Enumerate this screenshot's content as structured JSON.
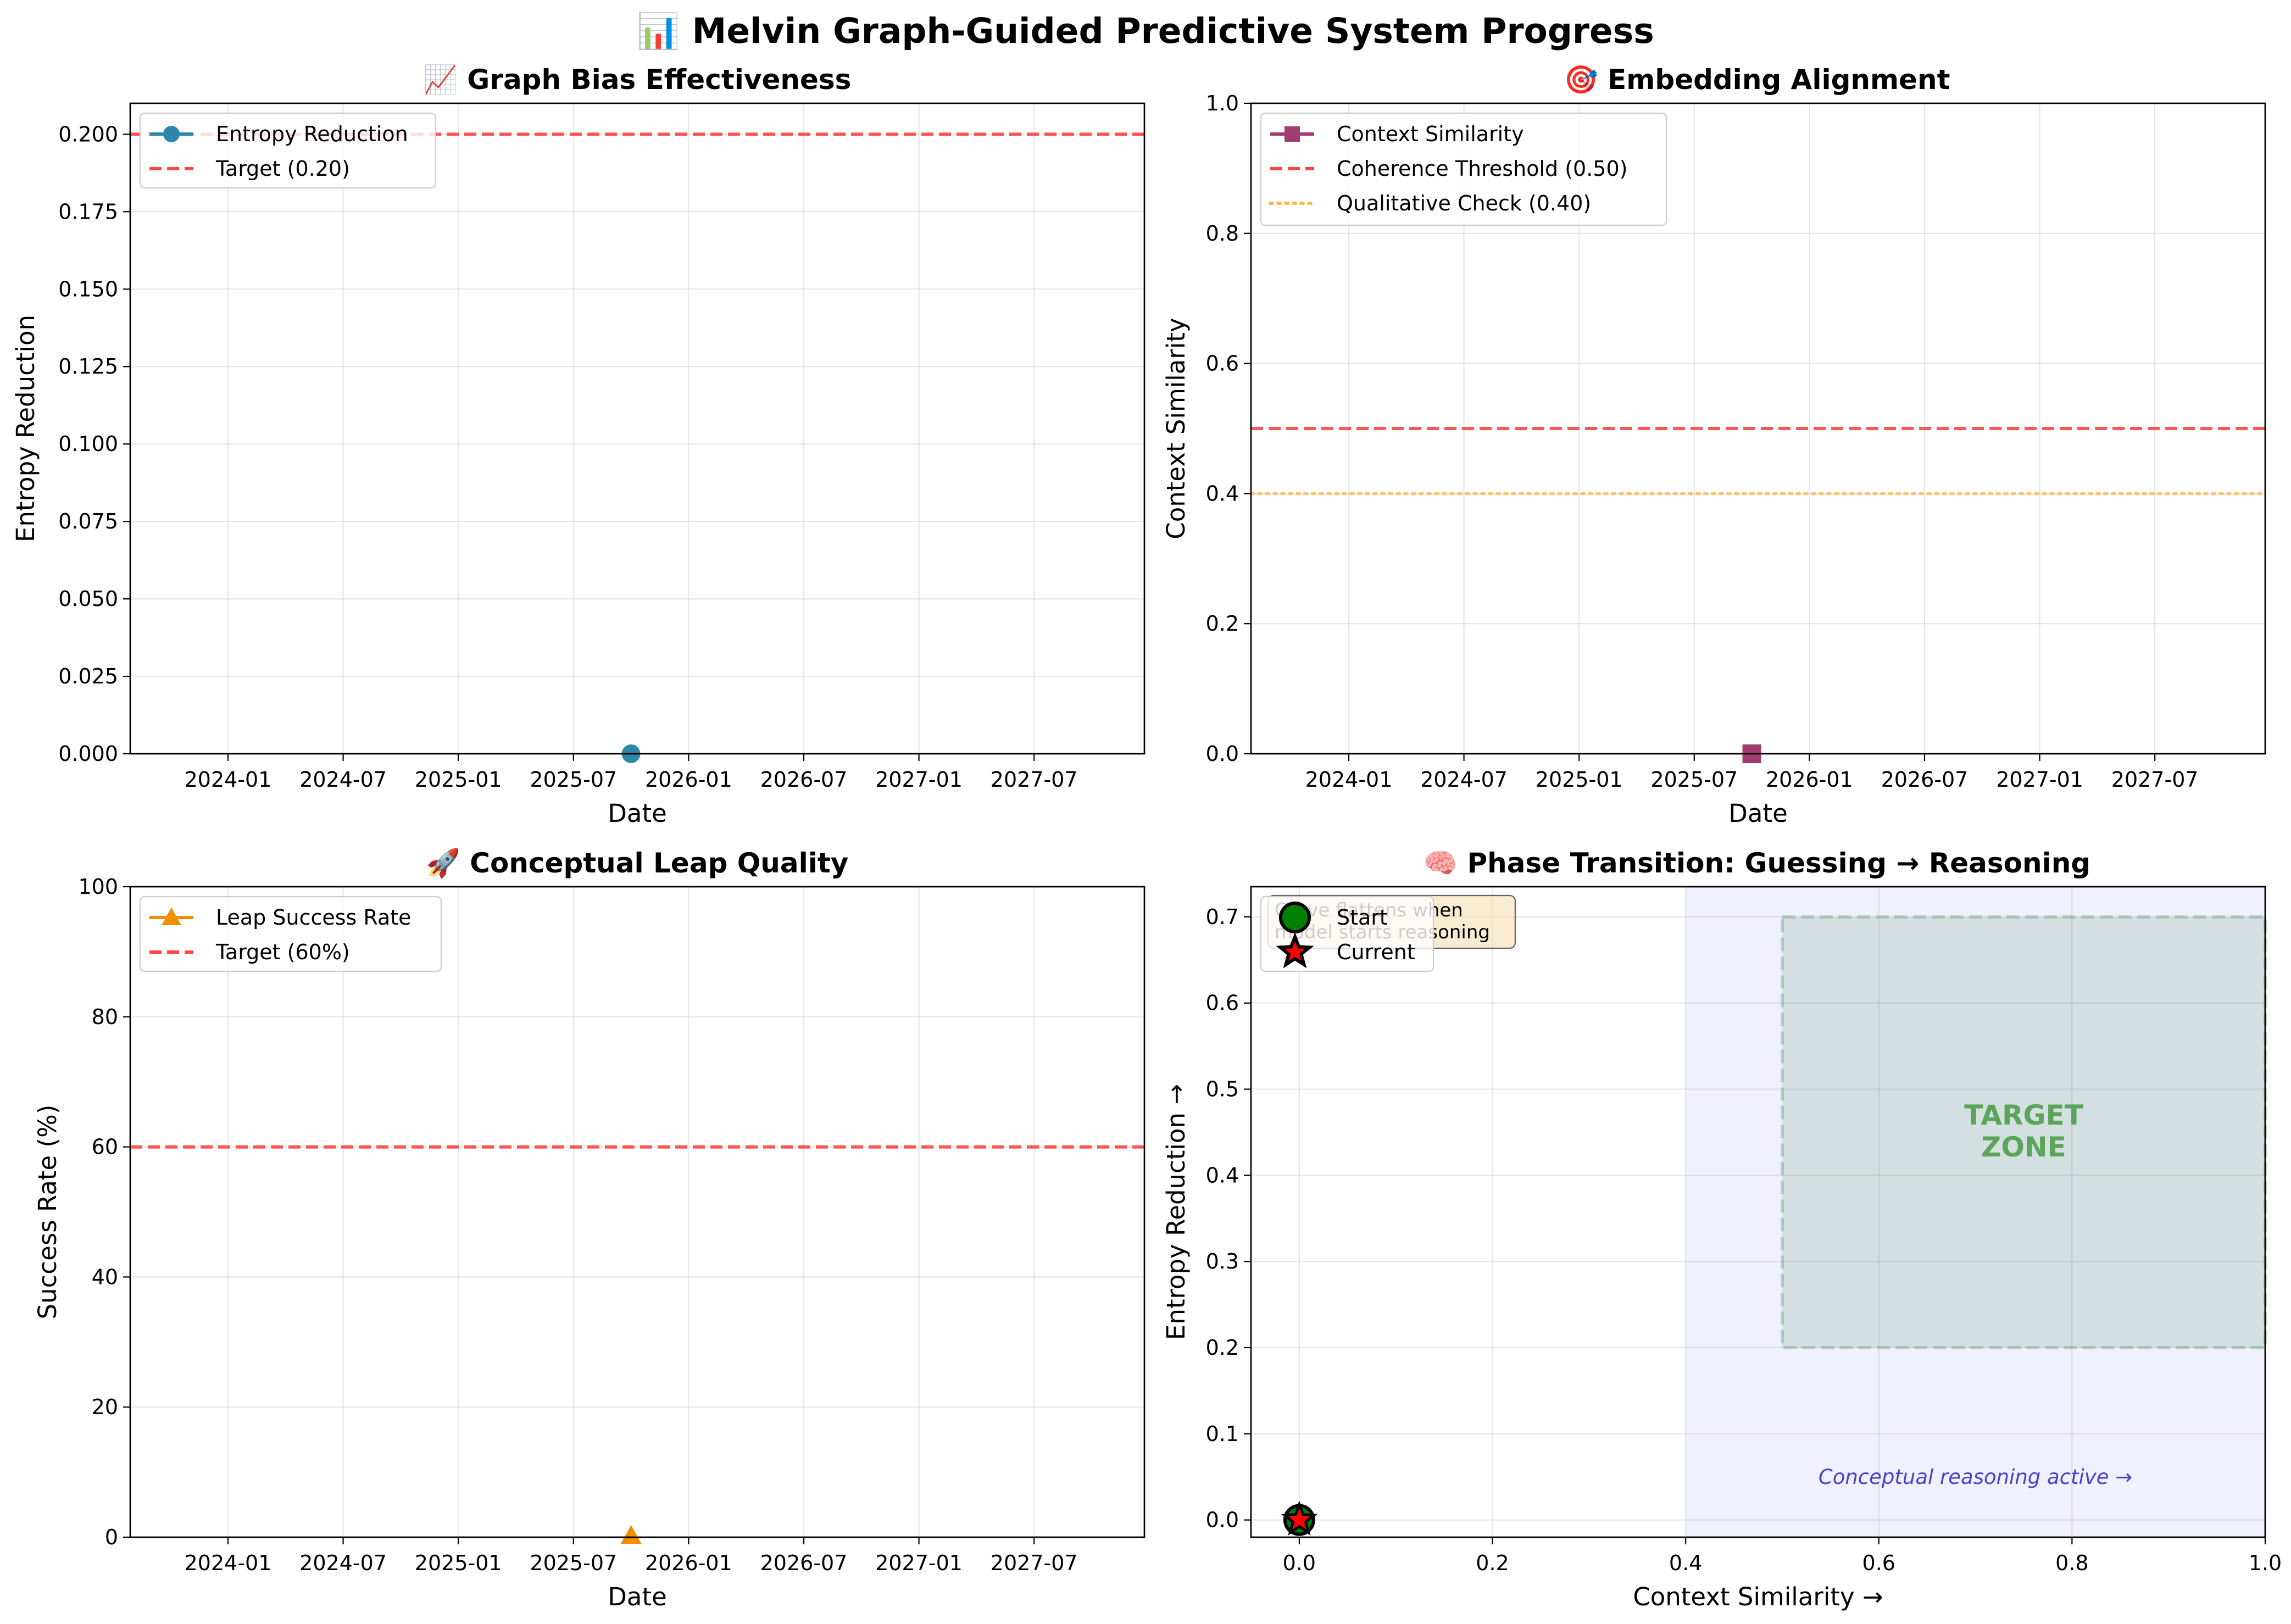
{
  "title": "📊 Melvin Graph-Guided Predictive System Progress",
  "colors": {
    "entropy": "#2e86ab",
    "similarity": "#a23b72",
    "leap": "#f18f01",
    "target": "#ff4444",
    "qualitative": "#ffb84d",
    "zone": "#2e7d32",
    "region": "#7070ff",
    "start": "#008000",
    "current": "#ff0000"
  },
  "chart_data": [
    {
      "type": "line",
      "title": "📈 Graph Bias Effectiveness",
      "xlabel": "Date",
      "ylabel": "Entropy Reduction",
      "x_ticks": [
        "2024-01",
        "2024-07",
        "2025-01",
        "2025-07",
        "2026-01",
        "2026-07",
        "2027-01",
        "2027-07"
      ],
      "y_ticks": [
        "0.000",
        "0.025",
        "0.050",
        "0.075",
        "0.100",
        "0.125",
        "0.150",
        "0.175",
        "0.200"
      ],
      "ylim": [
        0,
        0.21
      ],
      "grid": true,
      "legend_position": "upper-left",
      "series": [
        {
          "name": "Entropy Reduction",
          "marker": "circle",
          "points": [
            {
              "x": "2025-10",
              "y": 0
            }
          ]
        }
      ],
      "reference_lines": [
        {
          "name": "Target (0.20)",
          "y": 0.2,
          "style": "dashed"
        }
      ]
    },
    {
      "type": "line",
      "title": "🎯 Embedding Alignment",
      "xlabel": "Date",
      "ylabel": "Context Similarity",
      "x_ticks": [
        "2024-01",
        "2024-07",
        "2025-01",
        "2025-07",
        "2026-01",
        "2026-07",
        "2027-01",
        "2027-07"
      ],
      "y_ticks": [
        "0.0",
        "0.2",
        "0.4",
        "0.6",
        "0.8",
        "1.0"
      ],
      "ylim": [
        0,
        1
      ],
      "grid": true,
      "legend_position": "upper-left",
      "series": [
        {
          "name": "Context Similarity",
          "marker": "square",
          "points": [
            {
              "x": "2025-10",
              "y": 0
            }
          ]
        }
      ],
      "reference_lines": [
        {
          "name": "Coherence Threshold (0.50)",
          "y": 0.5,
          "style": "dashed"
        },
        {
          "name": "Qualitative Check (0.40)",
          "y": 0.4,
          "style": "dotted"
        }
      ]
    },
    {
      "type": "line",
      "title": "🚀 Conceptual Leap Quality",
      "xlabel": "Date",
      "ylabel": "Success Rate (%)",
      "x_ticks": [
        "2024-01",
        "2024-07",
        "2025-01",
        "2025-07",
        "2026-01",
        "2026-07",
        "2027-01",
        "2027-07"
      ],
      "y_ticks": [
        "0",
        "20",
        "40",
        "60",
        "80",
        "100"
      ],
      "ylim": [
        0,
        100
      ],
      "grid": true,
      "legend_position": "upper-left",
      "series": [
        {
          "name": "Leap Success Rate",
          "marker": "triangle",
          "points": [
            {
              "x": "2025-10",
              "y": 0
            }
          ]
        }
      ],
      "reference_lines": [
        {
          "name": "Target (60%)",
          "y": 60,
          "style": "dashed"
        }
      ]
    },
    {
      "type": "scatter",
      "title": "🧠 Phase Transition: Guessing → Reasoning",
      "xlabel": "Context Similarity →",
      "ylabel": "Entropy Reduction →",
      "x_ticks": [
        "0.0",
        "0.2",
        "0.4",
        "0.6",
        "0.8",
        "1.0"
      ],
      "y_ticks": [
        "0.0",
        "0.1",
        "0.2",
        "0.3",
        "0.4",
        "0.5",
        "0.6",
        "0.7"
      ],
      "xlim": [
        -0.05,
        1.0
      ],
      "ylim": [
        -0.02,
        0.735
      ],
      "grid": true,
      "legend_position": "upper-left",
      "points": [
        {
          "name": "Start",
          "x": 0,
          "y": 0,
          "marker": "circle"
        },
        {
          "name": "Current",
          "x": 0,
          "y": 0,
          "marker": "star"
        }
      ],
      "target_zone": {
        "label_line1": "TARGET",
        "label_line2": "ZONE",
        "x": [
          0.5,
          1.0
        ],
        "y": [
          0.2,
          0.7
        ]
      },
      "reasoning_region": {
        "x_from": 0.4,
        "label": "Conceptual reasoning active →"
      },
      "annotation": {
        "line1": "Curve flattens when",
        "line2": "model starts reasoning"
      }
    }
  ]
}
